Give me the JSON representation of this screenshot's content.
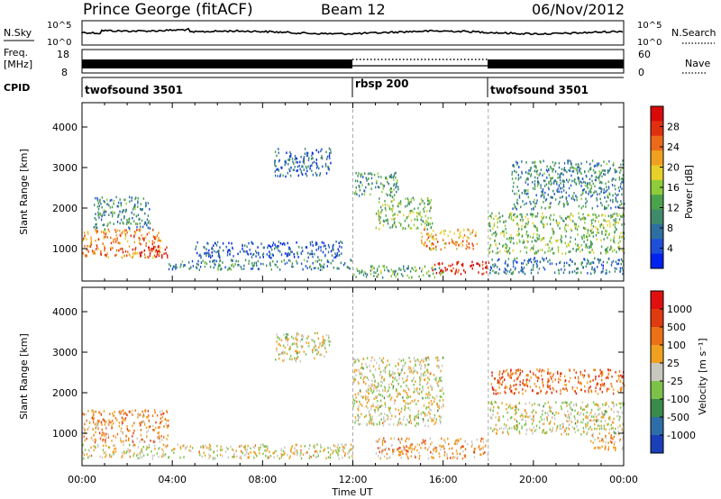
{
  "header": {
    "station": "Prince George (fitACF)",
    "beam": "Beam 12",
    "date": "06/Nov/2012"
  },
  "top_panels": {
    "nsky_label": "N.Sky",
    "nsky_ticks": [
      "10^5",
      "10^0"
    ],
    "nsearch_label": "N.Search",
    "nsearch_ticks": [
      "10^5",
      "10^0"
    ],
    "freq_label": "Freq.",
    "freq_unit": "[MHz]",
    "freq_ticks": [
      "18",
      "8"
    ],
    "nave_label": "Nave",
    "nave_ticks": [
      "60",
      "0"
    ],
    "cpid_label": "CPID",
    "cpid_segments": [
      {
        "name": "twofsound 3501",
        "start_hour": 0,
        "end_hour": 12
      },
      {
        "name": "rbsp 200",
        "start_hour": 12,
        "end_hour": 18
      },
      {
        "name": "twofsound 3501",
        "start_hour": 18,
        "end_hour": 24
      }
    ]
  },
  "chart_data": [
    {
      "type": "heatmap",
      "panel": "power",
      "ylabel": "Slant Range [km]",
      "xlim_hours": [
        0,
        24
      ],
      "ylim": [
        200,
        4600
      ],
      "yticks": [
        1000,
        2000,
        3000,
        4000
      ],
      "colorbar": {
        "label": "Power [dB]",
        "ticks": [
          "28",
          "24",
          "20",
          "16",
          "12",
          "8",
          "4"
        ],
        "colors": [
          "#0022ee",
          "#1e4fd8",
          "#2f6fa0",
          "#3e8a6a",
          "#4aa24d",
          "#8fcc3a",
          "#e8d02a",
          "#f0a020",
          "#ec6a1a",
          "#e03010",
          "#d80a0a"
        ]
      },
      "regions": [
        {
          "start_hour": 0.0,
          "end_hour": 3.5,
          "range_min": 800,
          "range_max": 1500,
          "level": 0.75
        },
        {
          "start_hour": 2.5,
          "end_hour": 3.8,
          "range_min": 800,
          "range_max": 1100,
          "level": 0.95
        },
        {
          "start_hour": 0.5,
          "end_hour": 3.0,
          "range_min": 1500,
          "range_max": 2300,
          "level": 0.3
        },
        {
          "start_hour": 3.8,
          "end_hour": 12.0,
          "range_min": 500,
          "range_max": 750,
          "level": 0.3
        },
        {
          "start_hour": 5.0,
          "end_hour": 11.5,
          "range_min": 800,
          "range_max": 1200,
          "level": 0.15
        },
        {
          "start_hour": 8.5,
          "end_hour": 11.0,
          "range_min": 2800,
          "range_max": 3500,
          "level": 0.2
        },
        {
          "start_hour": 12.0,
          "end_hour": 14.0,
          "range_min": 2300,
          "range_max": 2900,
          "level": 0.35
        },
        {
          "start_hour": 13.0,
          "end_hour": 15.5,
          "range_min": 1500,
          "range_max": 2300,
          "level": 0.45
        },
        {
          "start_hour": 15.0,
          "end_hour": 17.5,
          "range_min": 1000,
          "range_max": 1500,
          "level": 0.7
        },
        {
          "start_hour": 15.5,
          "end_hour": 18.0,
          "range_min": 400,
          "range_max": 700,
          "level": 0.95
        },
        {
          "start_hour": 12.0,
          "end_hour": 16.0,
          "range_min": 300,
          "range_max": 600,
          "level": 0.4
        },
        {
          "start_hour": 18.0,
          "end_hour": 24.0,
          "range_min": 900,
          "range_max": 1900,
          "level": 0.45
        },
        {
          "start_hour": 18.0,
          "end_hour": 24.0,
          "range_min": 400,
          "range_max": 800,
          "level": 0.25
        },
        {
          "start_hour": 19.0,
          "end_hour": 24.0,
          "range_min": 2000,
          "range_max": 3200,
          "level": 0.3
        }
      ]
    },
    {
      "type": "heatmap",
      "panel": "velocity",
      "ylabel": "Slant Range [km]",
      "xlabel": "Time UT",
      "xlim_hours": [
        0,
        24
      ],
      "ylim": [
        200,
        4600
      ],
      "yticks": [
        1000,
        2000,
        3000,
        4000
      ],
      "xtick_labels": [
        "00:00",
        "04:00",
        "08:00",
        "12:00",
        "16:00",
        "20:00",
        "00:00"
      ],
      "colorbar": {
        "label": "Velocity [m s⁻¹]",
        "ticks": [
          "1000",
          "500",
          "100",
          "25",
          "-25",
          "-100",
          "-500",
          "-1000"
        ],
        "colors": [
          "#1a3fb8",
          "#2d6ea8",
          "#3a8a4a",
          "#7cc24a",
          "#c8c8c0",
          "#f0a020",
          "#ec7018",
          "#e03a10",
          "#e01010"
        ]
      },
      "regions": [
        {
          "start_hour": 0.0,
          "end_hour": 3.8,
          "range_min": 800,
          "range_max": 1600,
          "level": 0.65
        },
        {
          "start_hour": 0.0,
          "end_hour": 12.0,
          "range_min": 400,
          "range_max": 750,
          "level": 0.52
        },
        {
          "start_hour": 8.5,
          "end_hour": 11.0,
          "range_min": 2800,
          "range_max": 3500,
          "level": 0.5
        },
        {
          "start_hour": 12.0,
          "end_hour": 16.0,
          "range_min": 1200,
          "range_max": 2900,
          "level": 0.5
        },
        {
          "start_hour": 13.0,
          "end_hour": 18.0,
          "range_min": 400,
          "range_max": 900,
          "level": 0.62
        },
        {
          "start_hour": 18.0,
          "end_hour": 24.0,
          "range_min": 1000,
          "range_max": 1800,
          "level": 0.5
        },
        {
          "start_hour": 18.0,
          "end_hour": 24.0,
          "range_min": 2000,
          "range_max": 2600,
          "level": 0.75
        },
        {
          "start_hour": 22.5,
          "end_hour": 24.0,
          "range_min": 600,
          "range_max": 1000,
          "level": 0.65
        }
      ]
    }
  ]
}
